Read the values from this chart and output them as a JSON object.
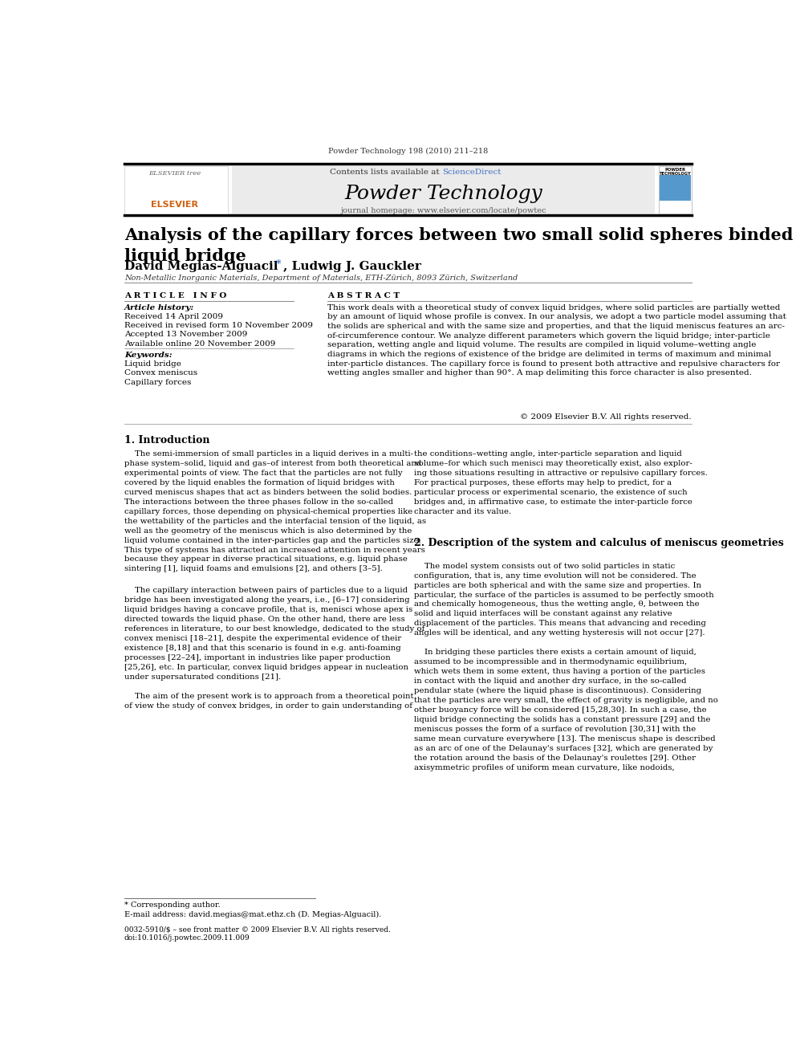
{
  "journal_ref": "Powder Technology 198 (2010) 211–218",
  "contents_line": "Contents lists available at ScienceDirect",
  "sciencedirect_color": "#4472c4",
  "journal_name": "Powder Technology",
  "journal_homepage": "journal homepage: www.elsevier.com/locate/powtec",
  "title": "Analysis of the capillary forces between two small solid spheres binded by a convex\nliquid bridge",
  "authors": "David Megias-Alguacil *, Ludwig J. Gauckler",
  "affiliation": "Non-Metallic Inorganic Materials, Department of Materials, ETH-Zürich, 8093 Zürich, Switzerland",
  "article_info_header": "A R T I C L E   I N F O",
  "abstract_header": "A B S T R A C T",
  "article_history_label": "Article history:",
  "received1": "Received 14 April 2009",
  "received2": "Received in revised form 10 November 2009",
  "accepted": "Accepted 13 November 2009",
  "available": "Available online 20 November 2009",
  "keywords_label": "Keywords:",
  "keyword1": "Liquid bridge",
  "keyword2": "Convex meniscus",
  "keyword3": "Capillary forces",
  "abstract_text": "This work deals with a theoretical study of convex liquid bridges, where solid particles are partially wetted\nby an amount of liquid whose profile is convex. In our analysis, we adopt a two particle model assuming that\nthe solids are spherical and with the same size and properties, and that the liquid meniscus features an arc-\nof-circumference contour. We analyze different parameters which govern the liquid bridge; inter-particle\nseparation, wetting angle and liquid volume. The results are compiled in liquid volume–wetting angle\ndiagrams in which the regions of existence of the bridge are delimited in terms of maximum and minimal\ninter-particle distances. The capillary force is found to present both attractive and repulsive characters for\nwetting angles smaller and higher than 90°. A map delimiting this force character is also presented.",
  "copyright": "© 2009 Elsevier B.V. All rights reserved.",
  "section1_title": "1. Introduction",
  "section2_title": "2. Description of the system and calculus of meniscus geometries",
  "footnote_star": "* Corresponding author.",
  "footnote_email": "E-mail address: david.megias@mat.ethz.ch (D. Megias-Alguacil).",
  "footer_left": "0032-5910/$ – see front matter © 2009 Elsevier B.V. All rights reserved.",
  "footer_doi": "doi:10.1016/j.powtec.2009.11.009",
  "bg_color": "#ffffff",
  "header_bar_color": "#000000",
  "header_bg_color": "#ebebeb",
  "blue_color": "#4472c4",
  "intro_left1": "    The semi-immersion of small particles in a liquid derives in a multi-\nphase system–solid, liquid and gas–of interest from both theoretical and\nexperimental points of view. The fact that the particles are not fully\ncovered by the liquid enables the formation of liquid bridges with\ncurved meniscus shapes that act as binders between the solid bodies.\nThe interactions between the three phases follow in the so-called\ncapillary forces, those depending on physical-chemical properties like\nthe wettability of the particles and the interfacial tension of the liquid, as\nwell as the geometry of the meniscus which is also determined by the\nliquid volume contained in the inter-particles gap and the particles size.\nThis type of systems has attracted an increased attention in recent years\nbecause they appear in diverse practical situations, e.g. liquid phase\nsintering [1], liquid foams and emulsions [2], and others [3–5].",
  "intro_left2": "    The capillary interaction between pairs of particles due to a liquid\nbridge has been investigated along the years, i.e., [6–17] considering\nliquid bridges having a concave profile, that is, menisci whose apex is\ndirected towards the liquid phase. On the other hand, there are less\nreferences in literature, to our best knowledge, dedicated to the study of\nconvex menisci [18–21], despite the experimental evidence of their\nexistence [8,18] and that this scenario is found in e.g. anti-foaming\nprocesses [22–24], important in industries like paper production\n[25,26], etc. In particular, convex liquid bridges appear in nucleation\nunder supersaturated conditions [21].\n\n    The aim of the present work is to approach from a theoretical point\nof view the study of convex bridges, in order to gain understanding of",
  "intro_right1": "the conditions–wetting angle, inter-particle separation and liquid\nvolume–for which such menisci may theoretically exist, also explor-\ning those situations resulting in attractive or repulsive capillary forces.\nFor practical purposes, these efforts may help to predict, for a\nparticular process or experimental scenario, the existence of such\nbridges and, in affirmative case, to estimate the inter-particle force\ncharacter and its value.",
  "sect2_right": "    The model system consists out of two solid particles in static\nconfiguration, that is, any time evolution will not be considered. The\nparticles are both spherical and with the same size and properties. In\nparticular, the surface of the particles is assumed to be perfectly smooth\nand chemically homogeneous, thus the wetting angle, θ, between the\nsolid and liquid interfaces will be constant against any relative\ndisplacement of the particles. This means that advancing and receding\nangles will be identical, and any wetting hysteresis will not occur [27].\n\n    In bridging these particles there exists a certain amount of liquid,\nassumed to be incompressible and in thermodynamic equilibrium,\nwhich wets them in some extent, thus having a portion of the particles\nin contact with the liquid and another dry surface, in the so-called\npendular state (where the liquid phase is discontinuous). Considering\nthat the particles are very small, the effect of gravity is negligible, and no\nother buoyancy force will be considered [15,28,30]. In such a case, the\nliquid bridge connecting the solids has a constant pressure [29] and the\nmeniscus posses the form of a surface of revolution [30,31] with the\nsame mean curvature everywhere [13]. The meniscus shape is described\nas an arc of one of the Delaunay's surfaces [32], which are generated by\nthe rotation around the basis of the Delaunay's roulettes [29]. Other\naxisymmetric profiles of uniform mean curvature, like nodoids,"
}
